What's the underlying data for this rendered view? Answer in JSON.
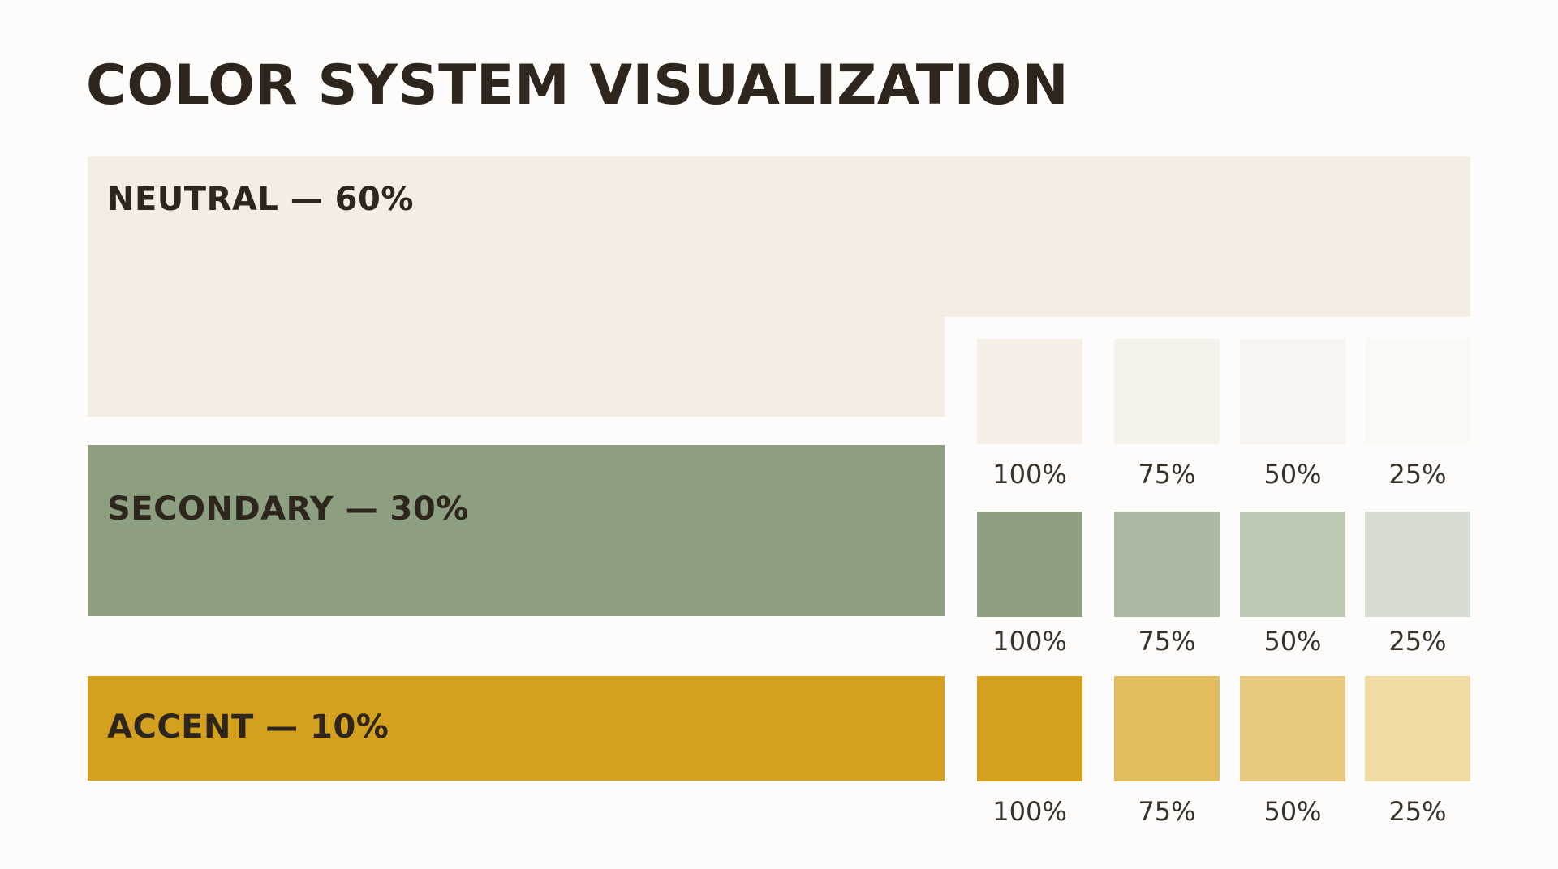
{
  "title": "COLOR SYSTEM VISUALIZATION",
  "colors": {
    "background": "#fdfcfa",
    "text": "#2e261c",
    "neutral": "#f3ede4",
    "secondary": "#8c9f80",
    "accent": "#d4a11f"
  },
  "bands": {
    "neutral": {
      "label": "NEUTRAL — 60%",
      "share": 60
    },
    "secondary": {
      "label": "SECONDARY — 30%",
      "share": 30
    },
    "accent": {
      "label": "ACCENT — 10%",
      "share": 10
    }
  },
  "tints": {
    "neutral": [
      {
        "label": "100%",
        "color": "#f5efe8"
      },
      {
        "label": "75%",
        "color": "#f6f1eb"
      },
      {
        "label": "50%",
        "color": "#f8f5f0"
      },
      {
        "label": "25%",
        "color": "#fbf9f6"
      }
    ],
    "secondary": [
      {
        "label": "100%",
        "color": "#8c9f80"
      },
      {
        "label": "75%",
        "color": "#adb8a2"
      },
      {
        "label": "50%",
        "color": "#bfcab5"
      },
      {
        "label": "25%",
        "color": "#d6ddd2"
      }
    ],
    "accent": [
      {
        "label": "100%",
        "color": "#d4a11f"
      },
      {
        "label": "75%",
        "color": "#e2bd5e"
      },
      {
        "label": "50%",
        "color": "#e8c97f"
      },
      {
        "label": "25%",
        "color": "#f0dba5"
      }
    ]
  }
}
